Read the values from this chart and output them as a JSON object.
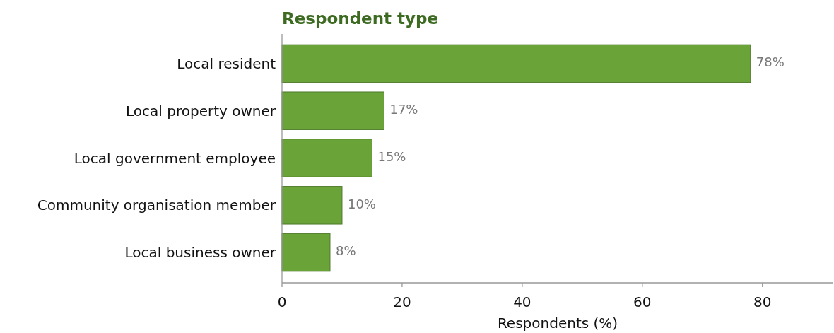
{
  "chart_data": {
    "type": "bar",
    "orientation": "horizontal",
    "title": "Respondent type",
    "xlabel": "Respondents (%)",
    "categories": [
      "Local resident",
      "Local property owner",
      "Local government employee",
      "Community organisation member",
      "Local business owner"
    ],
    "values": [
      78,
      17,
      15,
      10,
      8
    ],
    "value_labels": [
      "78%",
      "17%",
      "15%",
      "10%",
      "8%"
    ],
    "color": "#6aa338",
    "xlim": [
      0,
      91.8
    ],
    "xticks": [
      0,
      20,
      40,
      60,
      80
    ],
    "grid": false
  }
}
